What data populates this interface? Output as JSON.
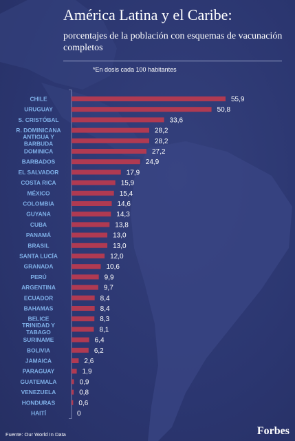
{
  "header": {
    "title": "América Latina y el Caribe:",
    "subtitle": "porcentajes de la población con esquemas de vacunación completos",
    "note": "*En dosis cada 100 habitantes"
  },
  "footer": {
    "source": "Fuente: Our World In Data",
    "brand": "Forbes"
  },
  "colors": {
    "bar": "#b03a52",
    "category_text": "#7fb0e8",
    "background": "#2b3670"
  },
  "chart_data": {
    "type": "bar",
    "orientation": "horizontal",
    "grid": false,
    "categories": [
      "CHILE",
      "URUGUAY",
      "S. CRISTÓBAL",
      "R. DOMINICANA",
      "ANTIGUA Y BARBUDA",
      "DOMINICA",
      "BARBADOS",
      "EL SALVADOR",
      "COSTA RICA",
      "MÉXICO",
      "COLOMBIA",
      "GUYANA",
      "CUBA",
      "PANAMÁ",
      "BRASIL",
      "SANTA LUCÍA",
      "GRANADA",
      "PERÚ",
      "ARGENTINA",
      "ECUADOR",
      "BAHAMAS",
      "BELICE",
      "TRINIDAD Y TABAGO",
      "SURINAME",
      "BOLIVIA",
      "JAMAICA",
      "PARAGUAY",
      "GUATEMALA",
      "VENEZUELA",
      "HONDURAS",
      "HAITÍ"
    ],
    "values": [
      55.9,
      50.8,
      33.6,
      28.2,
      28.2,
      27.2,
      24.9,
      17.9,
      15.9,
      15.4,
      14.6,
      14.3,
      13.8,
      13.0,
      13.0,
      12.0,
      10.6,
      9.9,
      9.7,
      8.4,
      8.4,
      8.3,
      8.1,
      6.4,
      6.2,
      2.6,
      1.9,
      0.9,
      0.8,
      0.6,
      0
    ],
    "labels": [
      "55,9",
      "50,8",
      "33,6",
      "28,2",
      "28,2",
      "27,2",
      "24,9",
      "17,9",
      "15,9",
      "15,4",
      "14,6",
      "14,3",
      "13,8",
      "13,0",
      "13,0",
      "12,0",
      "10,6",
      "9,9",
      "9,7",
      "8,4",
      "8,4",
      "8,3",
      "8,1",
      "6,4",
      "6,2",
      "2,6",
      "1,9",
      "0,9",
      "0,8",
      "0,6",
      "0"
    ],
    "xlim": [
      0,
      55.9
    ]
  }
}
